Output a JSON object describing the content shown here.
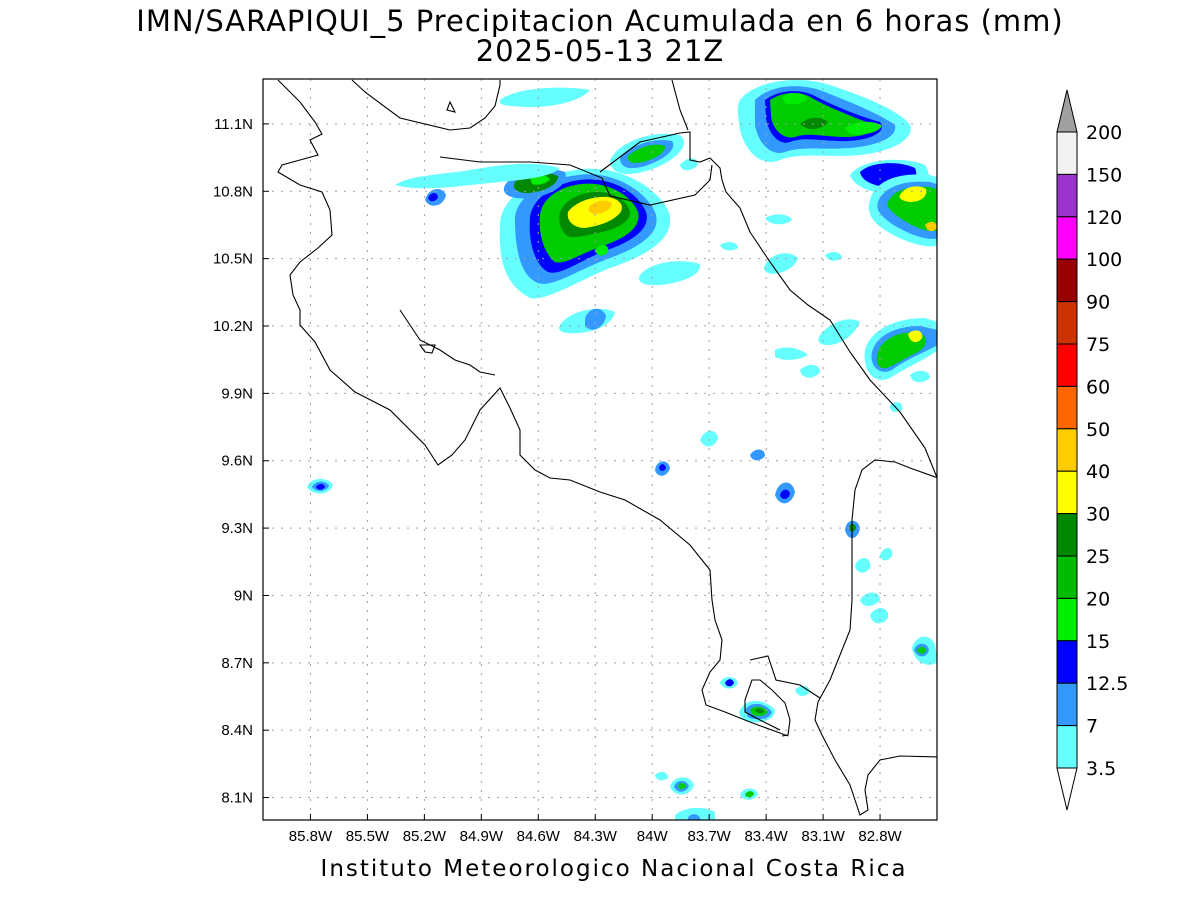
{
  "title_line1": "IMN/SARAPIQUI_5 Precipitacion Acumulada en 6 horas (mm)",
  "title_line2": "2025-05-13 21Z",
  "footer": "Instituto Meteorologico Nacional Costa Rica",
  "map": {
    "lon_range": [
      -86.05,
      -82.5
    ],
    "lat_range": [
      8.0,
      11.3
    ],
    "lon_ticks": [
      "85.8W",
      "85.5W",
      "85.2W",
      "84.9W",
      "84.6W",
      "84.3W",
      "84W",
      "83.7W",
      "83.4W",
      "83.1W",
      "82.8W"
    ],
    "lat_ticks": [
      "11.1N",
      "10.8N",
      "10.5N",
      "10.2N",
      "9.9N",
      "9.6N",
      "9.3N",
      "9N",
      "8.7N",
      "8.4N",
      "8.1N"
    ],
    "grid": "dotted"
  },
  "colorbar": {
    "levels": [
      "200",
      "150",
      "120",
      "100",
      "90",
      "75",
      "60",
      "50",
      "40",
      "30",
      "25",
      "20",
      "15",
      "12.5",
      "7",
      "3.5"
    ],
    "colors": [
      "#f2f2f2",
      "#9933cc",
      "#ff00ff",
      "#990000",
      "#cc3300",
      "#ff0000",
      "#ff6600",
      "#ffcc00",
      "#ffff00",
      "#008800",
      "#00bb00",
      "#00ee00",
      "#0000ff",
      "#3399ff",
      "#66ffff"
    ],
    "over_color": "#a0a0a0",
    "under_color": "#ffffff"
  }
}
